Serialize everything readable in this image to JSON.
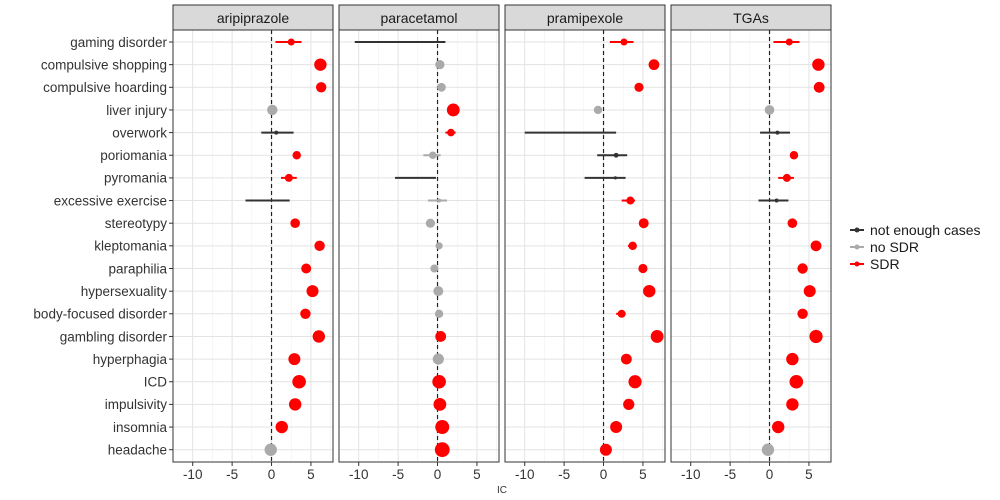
{
  "chart_data": {
    "type": "forest-dot",
    "xlabel": "IC",
    "xlim": [
      -12.5,
      7.8
    ],
    "xticks": [
      -10,
      -5,
      0,
      5
    ],
    "reference_line_x": 0,
    "grid": true,
    "legend_placement": "right",
    "categories": [
      "gaming disorder",
      "compulsive shopping",
      "compulsive hoarding",
      "liver injury",
      "overwork",
      "poriomania",
      "pyromania",
      "excessive exercise",
      "stereotypy",
      "kleptomania",
      "paraphilia",
      "hypersexuality",
      "body-focused disorder",
      "gambling disorder",
      "hyperphagia",
      "ICD",
      "impulsivity",
      "insomnia",
      "headache"
    ],
    "legend": [
      {
        "key": "not enough cases",
        "label": "not enough cases",
        "color": "#333333"
      },
      {
        "key": "no SDR",
        "label": "no SDR",
        "color": "#aaaaaa"
      },
      {
        "key": "SDR",
        "label": "SDR",
        "color": "#ff0000"
      }
    ],
    "panels": [
      {
        "title": "aripiprazole",
        "points": [
          {
            "y": "gaming disorder",
            "x": 2.5,
            "lo": 0.5,
            "hi": 3.8,
            "status": "SDR",
            "size": 3.5
          },
          {
            "y": "compulsive shopping",
            "x": 6.2,
            "lo": 5.9,
            "hi": 6.4,
            "status": "SDR",
            "size": 6.2
          },
          {
            "y": "compulsive hoarding",
            "x": 6.3,
            "lo": 6.0,
            "hi": 6.5,
            "status": "SDR",
            "size": 5.2
          },
          {
            "y": "liver injury",
            "x": 0.1,
            "lo": -0.2,
            "hi": 0.3,
            "status": "no SDR",
            "size": 5.2
          },
          {
            "y": "overwork",
            "x": 0.6,
            "lo": -1.3,
            "hi": 2.8,
            "status": "not enough cases",
            "size": 2.0
          },
          {
            "y": "poriomania",
            "x": 3.2,
            "lo": 2.7,
            "hi": 3.6,
            "status": "SDR",
            "size": 4.2
          },
          {
            "y": "pyromania",
            "x": 2.2,
            "lo": 1.2,
            "hi": 3.2,
            "status": "SDR",
            "size": 4.0
          },
          {
            "y": "excessive exercise",
            "x": -0.5,
            "lo": -3.3,
            "hi": 2.3,
            "status": "not enough cases",
            "size": 0.8
          },
          {
            "y": "stereotypy",
            "x": 3.0,
            "lo": 2.7,
            "hi": 3.2,
            "status": "SDR",
            "size": 4.8
          },
          {
            "y": "kleptomania",
            "x": 6.1,
            "lo": 5.8,
            "hi": 6.3,
            "status": "SDR",
            "size": 5.2
          },
          {
            "y": "paraphilia",
            "x": 4.4,
            "lo": 4.1,
            "hi": 4.6,
            "status": "SDR",
            "size": 5.0
          },
          {
            "y": "hypersexuality",
            "x": 5.2,
            "lo": 5.0,
            "hi": 5.4,
            "status": "SDR",
            "size": 6.0
          },
          {
            "y": "body-focused disorder",
            "x": 4.3,
            "lo": 4.1,
            "hi": 4.5,
            "status": "SDR",
            "size": 5.2
          },
          {
            "y": "gambling disorder",
            "x": 6.0,
            "lo": 5.8,
            "hi": 6.2,
            "status": "SDR",
            "size": 6.2
          },
          {
            "y": "hyperphagia",
            "x": 2.9,
            "lo": 2.7,
            "hi": 3.1,
            "status": "SDR",
            "size": 6.0
          },
          {
            "y": "ICD",
            "x": 3.5,
            "lo": 3.3,
            "hi": 3.7,
            "status": "SDR",
            "size": 6.8
          },
          {
            "y": "impulsivity",
            "x": 3.0,
            "lo": 2.8,
            "hi": 3.2,
            "status": "SDR",
            "size": 6.2
          },
          {
            "y": "insomnia",
            "x": 1.3,
            "lo": 1.1,
            "hi": 1.5,
            "status": "SDR",
            "size": 6.2
          },
          {
            "y": "headache",
            "x": -0.1,
            "lo": -0.3,
            "hi": 0.1,
            "status": "no SDR",
            "size": 6.2
          }
        ]
      },
      {
        "title": "paracetamol",
        "points": [
          {
            "y": "gaming disorder",
            "x": 0.2,
            "lo": -10.5,
            "hi": 1.0,
            "status": "not enough cases",
            "size": 0.8
          },
          {
            "y": "compulsive shopping",
            "x": 0.3,
            "lo": 0.1,
            "hi": 0.5,
            "status": "no SDR",
            "size": 4.6
          },
          {
            "y": "compulsive hoarding",
            "x": 0.5,
            "lo": 0.3,
            "hi": 0.7,
            "status": "no SDR",
            "size": 4.4
          },
          {
            "y": "liver injury",
            "x": 2.0,
            "lo": 1.8,
            "hi": 2.2,
            "status": "SDR",
            "size": 6.4
          },
          {
            "y": "overwork",
            "x": 1.7,
            "lo": 1.0,
            "hi": 2.3,
            "status": "SDR",
            "size": 3.8
          },
          {
            "y": "poriomania",
            "x": -0.6,
            "lo": -1.8,
            "hi": 0.4,
            "status": "no SDR",
            "size": 3.8
          },
          {
            "y": "pyromania",
            "x": -0.5,
            "lo": -5.4,
            "hi": -0.2,
            "status": "not enough cases",
            "size": 0.8
          },
          {
            "y": "excessive exercise",
            "x": 0.2,
            "lo": -1.2,
            "hi": 1.2,
            "status": "no SDR",
            "size": 2.0
          },
          {
            "y": "stereotypy",
            "x": -0.9,
            "lo": -1.1,
            "hi": -0.7,
            "status": "no SDR",
            "size": 4.6
          },
          {
            "y": "kleptomania",
            "x": 0.2,
            "lo": -0.1,
            "hi": 0.4,
            "status": "no SDR",
            "size": 3.6
          },
          {
            "y": "paraphilia",
            "x": -0.4,
            "lo": -0.8,
            "hi": 0.0,
            "status": "no SDR",
            "size": 4.0
          },
          {
            "y": "hypersexuality",
            "x": 0.1,
            "lo": -0.1,
            "hi": 0.3,
            "status": "no SDR",
            "size": 5.0
          },
          {
            "y": "body-focused disorder",
            "x": 0.2,
            "lo": 0.0,
            "hi": 0.4,
            "status": "no SDR",
            "size": 4.2
          },
          {
            "y": "gambling disorder",
            "x": 0.4,
            "lo": 0.2,
            "hi": 0.6,
            "status": "SDR",
            "size": 5.4
          },
          {
            "y": "hyperphagia",
            "x": 0.1,
            "lo": -0.1,
            "hi": 0.3,
            "status": "no SDR",
            "size": 5.6
          },
          {
            "y": "ICD",
            "x": 0.2,
            "lo": 0.0,
            "hi": 0.4,
            "status": "SDR",
            "size": 6.8
          },
          {
            "y": "impulsivity",
            "x": 0.3,
            "lo": 0.1,
            "hi": 0.5,
            "status": "SDR",
            "size": 6.4
          },
          {
            "y": "insomnia",
            "x": 0.6,
            "lo": 0.4,
            "hi": 0.8,
            "status": "SDR",
            "size": 7.0
          },
          {
            "y": "headache",
            "x": 0.6,
            "lo": 0.4,
            "hi": 0.8,
            "status": "SDR",
            "size": 7.4
          }
        ]
      },
      {
        "title": "pramipexole",
        "points": [
          {
            "y": "gaming disorder",
            "x": 2.6,
            "lo": 0.8,
            "hi": 3.8,
            "status": "SDR",
            "size": 3.5
          },
          {
            "y": "compulsive shopping",
            "x": 6.4,
            "lo": 6.1,
            "hi": 6.7,
            "status": "SDR",
            "size": 5.4
          },
          {
            "y": "compulsive hoarding",
            "x": 4.5,
            "lo": 4.2,
            "hi": 4.8,
            "status": "SDR",
            "size": 4.6
          },
          {
            "y": "liver injury",
            "x": -0.7,
            "lo": -1.2,
            "hi": -0.3,
            "status": "no SDR",
            "size": 4.2
          },
          {
            "y": "overwork",
            "x": 0.1,
            "lo": -10.0,
            "hi": 1.6,
            "status": "not enough cases",
            "size": 0.8
          },
          {
            "y": "poriomania",
            "x": 1.6,
            "lo": -0.8,
            "hi": 3.0,
            "status": "not enough cases",
            "size": 2.4
          },
          {
            "y": "pyromania",
            "x": 1.5,
            "lo": -2.4,
            "hi": 2.8,
            "status": "not enough cases",
            "size": 1.6
          },
          {
            "y": "excessive exercise",
            "x": 3.4,
            "lo": 2.3,
            "hi": 4.0,
            "status": "SDR",
            "size": 4.0
          },
          {
            "y": "stereotypy",
            "x": 5.1,
            "lo": 4.8,
            "hi": 5.4,
            "status": "SDR",
            "size": 5.0
          },
          {
            "y": "kleptomania",
            "x": 3.7,
            "lo": 3.1,
            "hi": 4.2,
            "status": "SDR",
            "size": 4.2
          },
          {
            "y": "paraphilia",
            "x": 5.0,
            "lo": 4.7,
            "hi": 5.3,
            "status": "SDR",
            "size": 4.6
          },
          {
            "y": "hypersexuality",
            "x": 5.8,
            "lo": 5.5,
            "hi": 6.1,
            "status": "SDR",
            "size": 6.2
          },
          {
            "y": "body-focused disorder",
            "x": 2.3,
            "lo": 1.6,
            "hi": 2.8,
            "status": "SDR",
            "size": 4.0
          },
          {
            "y": "gambling disorder",
            "x": 6.8,
            "lo": 6.5,
            "hi": 7.1,
            "status": "SDR",
            "size": 6.4
          },
          {
            "y": "hyperphagia",
            "x": 2.9,
            "lo": 2.6,
            "hi": 3.2,
            "status": "SDR",
            "size": 5.4
          },
          {
            "y": "ICD",
            "x": 4.0,
            "lo": 3.7,
            "hi": 4.3,
            "status": "SDR",
            "size": 6.6
          },
          {
            "y": "impulsivity",
            "x": 3.2,
            "lo": 2.9,
            "hi": 3.5,
            "status": "SDR",
            "size": 5.6
          },
          {
            "y": "insomnia",
            "x": 1.6,
            "lo": 1.3,
            "hi": 1.9,
            "status": "SDR",
            "size": 6.0
          },
          {
            "y": "headache",
            "x": 0.3,
            "lo": 0.1,
            "hi": 0.5,
            "status": "SDR",
            "size": 6.0
          }
        ]
      },
      {
        "title": "TGAs",
        "points": [
          {
            "y": "gaming disorder",
            "x": 2.5,
            "lo": 0.5,
            "hi": 3.8,
            "status": "SDR",
            "size": 3.5
          },
          {
            "y": "compulsive shopping",
            "x": 6.2,
            "lo": 5.9,
            "hi": 6.5,
            "status": "SDR",
            "size": 6.2
          },
          {
            "y": "compulsive hoarding",
            "x": 6.3,
            "lo": 6.0,
            "hi": 6.6,
            "status": "SDR",
            "size": 5.4
          },
          {
            "y": "liver injury",
            "x": 0.0,
            "lo": -0.2,
            "hi": 0.2,
            "status": "no SDR",
            "size": 4.8
          },
          {
            "y": "overwork",
            "x": 1.0,
            "lo": -1.2,
            "hi": 2.6,
            "status": "not enough cases",
            "size": 2.0
          },
          {
            "y": "poriomania",
            "x": 3.1,
            "lo": 2.6,
            "hi": 3.6,
            "status": "SDR",
            "size": 4.2
          },
          {
            "y": "pyromania",
            "x": 2.2,
            "lo": 1.1,
            "hi": 3.1,
            "status": "SDR",
            "size": 4.0
          },
          {
            "y": "excessive exercise",
            "x": 0.9,
            "lo": -1.4,
            "hi": 2.4,
            "status": "not enough cases",
            "size": 2.0
          },
          {
            "y": "stereotypy",
            "x": 2.9,
            "lo": 2.6,
            "hi": 3.2,
            "status": "SDR",
            "size": 4.8
          },
          {
            "y": "kleptomania",
            "x": 5.9,
            "lo": 5.6,
            "hi": 6.2,
            "status": "SDR",
            "size": 5.4
          },
          {
            "y": "paraphilia",
            "x": 4.2,
            "lo": 3.9,
            "hi": 4.5,
            "status": "SDR",
            "size": 5.2
          },
          {
            "y": "hypersexuality",
            "x": 5.1,
            "lo": 4.8,
            "hi": 5.4,
            "status": "SDR",
            "size": 6.0
          },
          {
            "y": "body-focused disorder",
            "x": 4.2,
            "lo": 3.9,
            "hi": 4.5,
            "status": "SDR",
            "size": 5.2
          },
          {
            "y": "gambling disorder",
            "x": 5.9,
            "lo": 5.6,
            "hi": 6.2,
            "status": "SDR",
            "size": 6.6
          },
          {
            "y": "hyperphagia",
            "x": 2.9,
            "lo": 2.6,
            "hi": 3.2,
            "status": "SDR",
            "size": 6.2
          },
          {
            "y": "ICD",
            "x": 3.4,
            "lo": 3.1,
            "hi": 3.7,
            "status": "SDR",
            "size": 6.8
          },
          {
            "y": "impulsivity",
            "x": 2.9,
            "lo": 2.6,
            "hi": 3.2,
            "status": "SDR",
            "size": 6.2
          },
          {
            "y": "insomnia",
            "x": 1.1,
            "lo": 0.8,
            "hi": 1.4,
            "status": "SDR",
            "size": 6.2
          },
          {
            "y": "headache",
            "x": -0.2,
            "lo": -0.4,
            "hi": 0.0,
            "status": "no SDR",
            "size": 6.2
          }
        ]
      }
    ]
  }
}
